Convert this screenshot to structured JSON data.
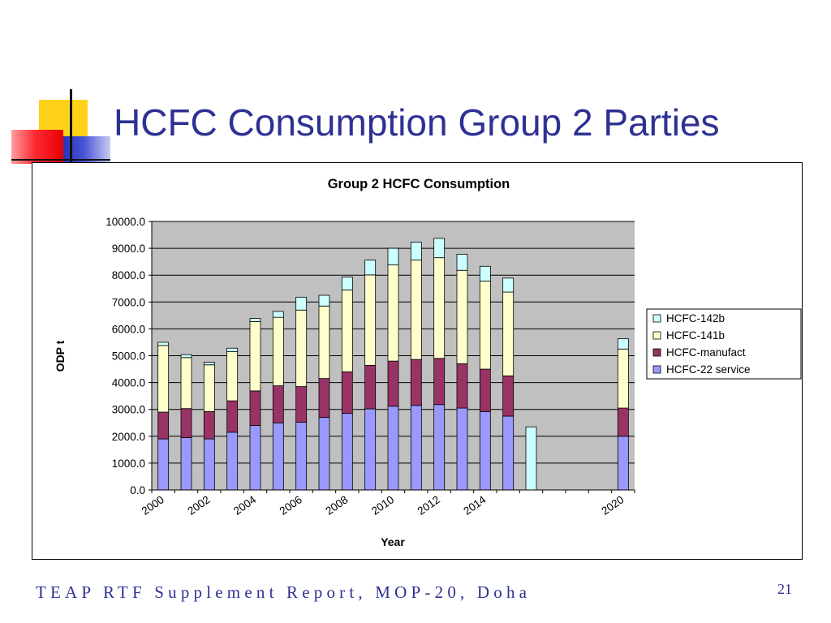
{
  "slide": {
    "title": "HCFC Consumption Group 2 Parties",
    "footer": "TEAP RTF Supplement Report, MOP-20, Doha",
    "page_number": "21"
  },
  "colors": {
    "title": "#2e3192",
    "plot_bg": "#c0c0c0",
    "gridline": "#000000"
  },
  "chart_data": {
    "type": "bar",
    "stacked": true,
    "title": "Group 2 HCFC Consumption",
    "xlabel": "Year",
    "ylabel": "ODP t",
    "ylim": [
      0,
      10000
    ],
    "yticks": [
      "0.0",
      "1000.0",
      "2000.0",
      "3000.0",
      "4000.0",
      "5000.0",
      "6000.0",
      "7000.0",
      "8000.0",
      "9000.0",
      "10000.0"
    ],
    "grid": true,
    "legend_position": "right",
    "categories": [
      2000,
      2001,
      2002,
      2003,
      2004,
      2005,
      2006,
      2007,
      2008,
      2009,
      2010,
      2011,
      2012,
      2013,
      2014,
      2015,
      2016,
      2017,
      2018,
      2019,
      2020
    ],
    "xtick_labels": [
      "2000",
      "",
      "2002",
      "",
      "2004",
      "",
      "2006",
      "",
      "2008",
      "",
      "2010",
      "",
      "2012",
      "",
      "2014",
      "",
      "",
      "",
      "",
      "",
      "2020"
    ],
    "series": [
      {
        "name": "HCFC-22 service",
        "color": "#9999ff",
        "values": [
          1900,
          1950,
          1900,
          2150,
          2400,
          2500,
          2520,
          2700,
          2850,
          3020,
          3120,
          3150,
          3180,
          3050,
          2920,
          2750,
          0,
          0,
          0,
          0,
          2000
        ]
      },
      {
        "name": "HCFC-manufact",
        "color": "#993366",
        "values": [
          1000,
          1080,
          1020,
          1170,
          1290,
          1380,
          1330,
          1450,
          1550,
          1620,
          1680,
          1710,
          1720,
          1650,
          1580,
          1500,
          0,
          0,
          0,
          0,
          1050
        ]
      },
      {
        "name": "HCFC-141b",
        "color": "#ffffcc",
        "values": [
          2480,
          1900,
          1740,
          1830,
          2580,
          2550,
          2850,
          2700,
          3050,
          3370,
          3580,
          3700,
          3750,
          3480,
          3280,
          3120,
          0,
          0,
          0,
          0,
          2200
        ]
      },
      {
        "name": "HCFC-142b",
        "color": "#ccffff",
        "values": [
          120,
          110,
          100,
          130,
          120,
          220,
          480,
          400,
          480,
          550,
          620,
          670,
          720,
          600,
          550,
          520,
          2350,
          0,
          0,
          0,
          380
        ]
      }
    ]
  }
}
